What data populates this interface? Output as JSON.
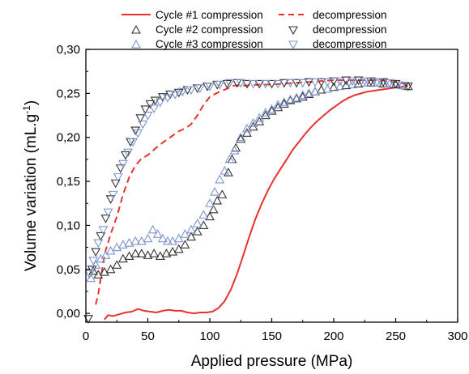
{
  "chart_data": {
    "type": "line+scatter",
    "xlabel": "Applied pressure (MPa)",
    "ylabel_main": "Volume variation (mL.g",
    "ylabel_sup": "-1",
    "ylabel_close": ")",
    "xlim": [
      0,
      300
    ],
    "ylim": [
      -0.01,
      0.3
    ],
    "xticks": [
      0,
      50,
      100,
      150,
      200,
      250,
      300
    ],
    "xtick_labels": [
      "0",
      "50",
      "100",
      "150",
      "200",
      "250",
      "300"
    ],
    "yticks": [
      0.0,
      0.05,
      0.1,
      0.15,
      0.2,
      0.25,
      0.3
    ],
    "ytick_labels": [
      "0,00",
      "0,05",
      "0,10",
      "0,15",
      "0,20",
      "0,25",
      "0,30"
    ],
    "grid": false,
    "legend_position": "top",
    "legend": {
      "c1_label": "Cycle #1 compression",
      "c1d_label": "decompression",
      "c2_label": "Cycle #2 compression",
      "c2d_label": "decompression",
      "c3_label": "Cycle #3 compression",
      "c3d_label": "decompression"
    },
    "colors": {
      "cycle1": "#e8332c",
      "cycle2": "#333333",
      "cycle3": "#7d94cc"
    },
    "series": [
      {
        "name": "Cycle #1 compression",
        "style": "solid-line",
        "points": [
          [
            15,
            -0.007
          ],
          [
            18,
            -0.002
          ],
          [
            22,
            -0.003
          ],
          [
            27,
            -0.001
          ],
          [
            32,
            0.001
          ],
          [
            37,
            0.002
          ],
          [
            42,
            0.005
          ],
          [
            47,
            0.003
          ],
          [
            52,
            0.002
          ],
          [
            57,
            0.001
          ],
          [
            62,
            0.003
          ],
          [
            67,
            0.004
          ],
          [
            72,
            0.003
          ],
          [
            77,
            0.003
          ],
          [
            82,
            0.001
          ],
          [
            87,
            0.0
          ],
          [
            92,
            0.001
          ],
          [
            97,
            0.001
          ],
          [
            102,
            0.002
          ],
          [
            107,
            0.006
          ],
          [
            112,
            0.014
          ],
          [
            117,
            0.027
          ],
          [
            122,
            0.045
          ],
          [
            127,
            0.066
          ],
          [
            132,
            0.088
          ],
          [
            137,
            0.108
          ],
          [
            142,
            0.125
          ],
          [
            147,
            0.14
          ],
          [
            152,
            0.153
          ],
          [
            157,
            0.164
          ],
          [
            162,
            0.175
          ],
          [
            167,
            0.186
          ],
          [
            172,
            0.195
          ],
          [
            177,
            0.204
          ],
          [
            182,
            0.212
          ],
          [
            187,
            0.219
          ],
          [
            192,
            0.225
          ],
          [
            197,
            0.231
          ],
          [
            202,
            0.236
          ],
          [
            207,
            0.241
          ],
          [
            212,
            0.245
          ],
          [
            217,
            0.248
          ],
          [
            222,
            0.25
          ],
          [
            227,
            0.252
          ],
          [
            232,
            0.253
          ],
          [
            237,
            0.254
          ],
          [
            242,
            0.255
          ],
          [
            247,
            0.256
          ],
          [
            252,
            0.257
          ],
          [
            257,
            0.258
          ],
          [
            260,
            0.259
          ]
        ]
      },
      {
        "name": "decompression",
        "style": "dashed-line",
        "points": [
          [
            8,
            0.01
          ],
          [
            10,
            0.022
          ],
          [
            12,
            0.04
          ],
          [
            14,
            0.058
          ],
          [
            16,
            0.072
          ],
          [
            20,
            0.09
          ],
          [
            25,
            0.11
          ],
          [
            30,
            0.135
          ],
          [
            35,
            0.155
          ],
          [
            40,
            0.168
          ],
          [
            45,
            0.176
          ],
          [
            50,
            0.18
          ],
          [
            55,
            0.186
          ],
          [
            60,
            0.192
          ],
          [
            65,
            0.197
          ],
          [
            70,
            0.202
          ],
          [
            75,
            0.207
          ],
          [
            80,
            0.21
          ],
          [
            85,
            0.215
          ],
          [
            90,
            0.225
          ],
          [
            95,
            0.237
          ],
          [
            100,
            0.246
          ],
          [
            105,
            0.25
          ],
          [
            110,
            0.253
          ],
          [
            115,
            0.256
          ],
          [
            120,
            0.259
          ],
          [
            130,
            0.259
          ],
          [
            140,
            0.26
          ],
          [
            150,
            0.26
          ],
          [
            160,
            0.261
          ],
          [
            170,
            0.262
          ],
          [
            180,
            0.263
          ],
          [
            190,
            0.264
          ],
          [
            200,
            0.265
          ],
          [
            210,
            0.265
          ],
          [
            220,
            0.265
          ],
          [
            230,
            0.265
          ],
          [
            240,
            0.265
          ],
          [
            250,
            0.263
          ],
          [
            260,
            0.26
          ]
        ]
      },
      {
        "name": "Cycle #2 compression",
        "style": "triangle-up",
        "points": [
          [
            6,
            0.048
          ],
          [
            10,
            0.044
          ],
          [
            15,
            0.047
          ],
          [
            20,
            0.05
          ],
          [
            25,
            0.055
          ],
          [
            30,
            0.062
          ],
          [
            35,
            0.065
          ],
          [
            40,
            0.068
          ],
          [
            45,
            0.068
          ],
          [
            50,
            0.066
          ],
          [
            55,
            0.068
          ],
          [
            60,
            0.065
          ],
          [
            65,
            0.068
          ],
          [
            70,
            0.07
          ],
          [
            75,
            0.073
          ],
          [
            80,
            0.078
          ],
          [
            85,
            0.087
          ],
          [
            90,
            0.093
          ],
          [
            95,
            0.1
          ],
          [
            100,
            0.11
          ],
          [
            103,
            0.118
          ],
          [
            106,
            0.128
          ],
          [
            110,
            0.135
          ],
          [
            115,
            0.16
          ],
          [
            118,
            0.175
          ],
          [
            121,
            0.188
          ],
          [
            125,
            0.198
          ],
          [
            130,
            0.205
          ],
          [
            135,
            0.212
          ],
          [
            140,
            0.218
          ],
          [
            145,
            0.225
          ],
          [
            150,
            0.23
          ],
          [
            155,
            0.234
          ],
          [
            160,
            0.238
          ],
          [
            165,
            0.242
          ],
          [
            170,
            0.244
          ],
          [
            175,
            0.246
          ],
          [
            180,
            0.249
          ],
          [
            185,
            0.252
          ],
          [
            190,
            0.254
          ],
          [
            200,
            0.257
          ],
          [
            210,
            0.259
          ],
          [
            220,
            0.261
          ],
          [
            230,
            0.262
          ],
          [
            240,
            0.261
          ],
          [
            250,
            0.26
          ],
          [
            260,
            0.258
          ]
        ]
      },
      {
        "name": "decompression",
        "style": "triangle-down",
        "points": [
          [
            2,
            -0.006
          ],
          [
            5,
            0.05
          ],
          [
            8,
            0.07
          ],
          [
            12,
            0.088
          ],
          [
            16,
            0.108
          ],
          [
            20,
            0.13
          ],
          [
            24,
            0.148
          ],
          [
            28,
            0.165
          ],
          [
            32,
            0.18
          ],
          [
            36,
            0.195
          ],
          [
            40,
            0.208
          ],
          [
            44,
            0.222
          ],
          [
            48,
            0.232
          ],
          [
            52,
            0.238
          ],
          [
            56,
            0.242
          ],
          [
            62,
            0.246
          ],
          [
            68,
            0.249
          ],
          [
            75,
            0.251
          ],
          [
            82,
            0.254
          ],
          [
            90,
            0.256
          ],
          [
            98,
            0.258
          ],
          [
            106,
            0.26
          ],
          [
            114,
            0.261
          ],
          [
            122,
            0.262
          ],
          [
            130,
            0.261
          ],
          [
            140,
            0.261
          ],
          [
            150,
            0.261
          ],
          [
            160,
            0.262
          ],
          [
            170,
            0.262
          ],
          [
            180,
            0.263
          ],
          [
            190,
            0.263
          ],
          [
            200,
            0.264
          ],
          [
            210,
            0.265
          ],
          [
            220,
            0.265
          ],
          [
            230,
            0.264
          ],
          [
            240,
            0.263
          ],
          [
            250,
            0.261
          ],
          [
            260,
            0.258
          ]
        ]
      },
      {
        "name": "Cycle #3 compression",
        "style": "triangle-up",
        "points": [
          [
            4,
            0.04
          ],
          [
            8,
            0.055
          ],
          [
            12,
            0.062
          ],
          [
            16,
            0.066
          ],
          [
            20,
            0.071
          ],
          [
            25,
            0.075
          ],
          [
            30,
            0.078
          ],
          [
            35,
            0.08
          ],
          [
            40,
            0.082
          ],
          [
            45,
            0.082
          ],
          [
            50,
            0.085
          ],
          [
            54,
            0.095
          ],
          [
            58,
            0.09
          ],
          [
            62,
            0.085
          ],
          [
            66,
            0.082
          ],
          [
            70,
            0.082
          ],
          [
            75,
            0.085
          ],
          [
            80,
            0.09
          ],
          [
            85,
            0.095
          ],
          [
            90,
            0.102
          ],
          [
            95,
            0.112
          ],
          [
            100,
            0.125
          ],
          [
            104,
            0.138
          ],
          [
            108,
            0.152
          ],
          [
            112,
            0.162
          ],
          [
            116,
            0.175
          ],
          [
            120,
            0.185
          ],
          [
            125,
            0.2
          ],
          [
            130,
            0.21
          ],
          [
            135,
            0.216
          ],
          [
            140,
            0.222
          ],
          [
            145,
            0.228
          ],
          [
            150,
            0.232
          ],
          [
            155,
            0.237
          ],
          [
            160,
            0.24
          ],
          [
            165,
            0.243
          ],
          [
            170,
            0.245
          ],
          [
            175,
            0.248
          ],
          [
            180,
            0.25
          ],
          [
            185,
            0.252
          ],
          [
            195,
            0.255
          ],
          [
            205,
            0.258
          ],
          [
            215,
            0.26
          ],
          [
            225,
            0.262
          ],
          [
            235,
            0.262
          ],
          [
            245,
            0.261
          ],
          [
            255,
            0.259
          ]
        ]
      },
      {
        "name": "decompression",
        "style": "triangle-down",
        "points": [
          [
            3,
            0.045
          ],
          [
            6,
            0.06
          ],
          [
            10,
            0.08
          ],
          [
            14,
            0.095
          ],
          [
            18,
            0.115
          ],
          [
            22,
            0.135
          ],
          [
            26,
            0.155
          ],
          [
            30,
            0.17
          ],
          [
            34,
            0.183
          ],
          [
            38,
            0.195
          ],
          [
            42,
            0.205
          ],
          [
            46,
            0.215
          ],
          [
            50,
            0.225
          ],
          [
            55,
            0.233
          ],
          [
            60,
            0.24
          ],
          [
            66,
            0.245
          ],
          [
            72,
            0.249
          ],
          [
            78,
            0.252
          ],
          [
            85,
            0.254
          ],
          [
            92,
            0.256
          ],
          [
            100,
            0.258
          ],
          [
            108,
            0.26
          ],
          [
            116,
            0.262
          ],
          [
            125,
            0.262
          ],
          [
            135,
            0.261
          ],
          [
            145,
            0.261
          ],
          [
            155,
            0.261
          ],
          [
            165,
            0.262
          ],
          [
            175,
            0.262
          ],
          [
            185,
            0.263
          ],
          [
            195,
            0.263
          ],
          [
            205,
            0.264
          ],
          [
            215,
            0.264
          ],
          [
            225,
            0.264
          ],
          [
            235,
            0.263
          ],
          [
            245,
            0.262
          ],
          [
            255,
            0.259
          ]
        ]
      }
    ]
  }
}
